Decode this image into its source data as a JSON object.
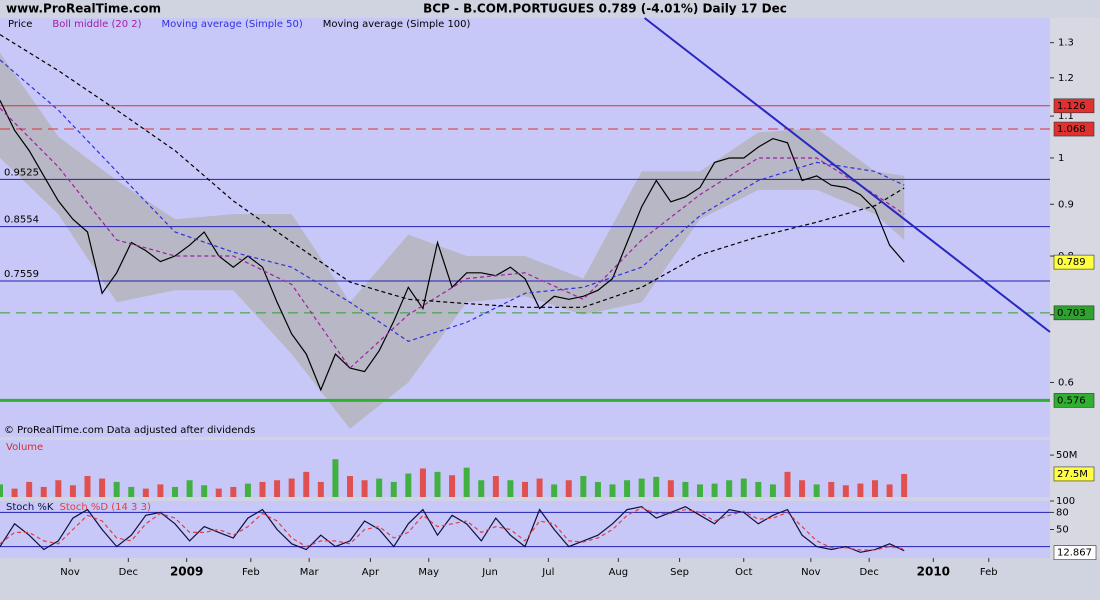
{
  "brand": "www.ProRealTime.com",
  "chart_data": [
    {
      "type": "line",
      "title": "BCP - B.COM.PORTUGUES    0.789 (-4.01%)    Daily  17 Dec",
      "note": "© ProRealTime.com  Data adjusted after dividends",
      "log": true,
      "ylim": [
        0.53,
        1.375
      ],
      "yticks": [
        1.3,
        1.2,
        1.1,
        1,
        0.9,
        0.8,
        0.7,
        0.6
      ],
      "series": [
        {
          "name": "Price",
          "color": "#000000",
          "x": [
            0,
            5,
            10,
            15,
            20,
            25,
            30,
            35,
            40,
            45,
            50,
            55,
            60,
            65,
            70,
            75,
            80,
            85,
            90,
            95,
            100,
            105,
            110,
            115,
            120,
            125,
            130,
            135,
            140,
            145,
            150,
            155,
            160,
            165,
            170,
            175,
            180,
            185,
            190,
            195,
            200,
            205,
            210,
            215,
            220,
            225,
            230,
            235,
            240,
            245,
            250,
            255,
            260,
            265,
            270,
            275,
            280,
            285,
            290,
            295,
            300,
            305,
            310
          ],
          "values": [
            1.14,
            1.065,
            1.017,
            0.96,
            0.907,
            0.87,
            0.845,
            0.735,
            0.77,
            0.825,
            0.81,
            0.79,
            0.8,
            0.82,
            0.845,
            0.8,
            0.78,
            0.8,
            0.78,
            0.72,
            0.67,
            0.64,
            0.59,
            0.64,
            0.62,
            0.615,
            0.645,
            0.69,
            0.745,
            0.71,
            0.825,
            0.745,
            0.77,
            0.77,
            0.765,
            0.78,
            0.76,
            0.71,
            0.73,
            0.725,
            0.73,
            0.74,
            0.76,
            0.825,
            0.895,
            0.95,
            0.905,
            0.915,
            0.935,
            0.99,
            1.0,
            1.0,
            1.025,
            1.045,
            1.035,
            0.95,
            0.96,
            0.94,
            0.935,
            0.92,
            0.89,
            0.82,
            0.789
          ],
          "last_color": "#ffff40"
        },
        {
          "name": "Boll middle (20 2)",
          "color": "#a020a0",
          "style": "dashed",
          "band_color": "#b4b4bc",
          "x": [
            0,
            20,
            40,
            60,
            80,
            100,
            120,
            140,
            160,
            180,
            200,
            220,
            240,
            260,
            280,
            300,
            310
          ],
          "values": [
            1.12,
            0.98,
            0.83,
            0.8,
            0.8,
            0.75,
            0.62,
            0.7,
            0.76,
            0.77,
            0.725,
            0.83,
            0.92,
            1.0,
            1.0,
            0.92,
            0.88
          ],
          "upper": [
            1.27,
            1.05,
            0.95,
            0.87,
            0.88,
            0.88,
            0.72,
            0.84,
            0.8,
            0.8,
            0.76,
            0.97,
            0.97,
            1.06,
            1.07,
            0.97,
            0.96
          ],
          "lower": [
            1.0,
            0.88,
            0.72,
            0.74,
            0.74,
            0.64,
            0.54,
            0.6,
            0.72,
            0.73,
            0.7,
            0.72,
            0.87,
            0.93,
            0.93,
            0.88,
            0.83
          ]
        },
        {
          "name": "Moving average (Simple 50)",
          "color": "#3030e0",
          "style": "dashed",
          "x": [
            0,
            20,
            40,
            60,
            80,
            100,
            120,
            140,
            160,
            180,
            200,
            220,
            240,
            260,
            280,
            300,
            310
          ],
          "values": [
            1.25,
            1.115,
            0.97,
            0.845,
            0.807,
            0.78,
            0.72,
            0.659,
            0.688,
            0.735,
            0.745,
            0.78,
            0.877,
            0.95,
            0.99,
            0.97,
            0.94
          ]
        },
        {
          "name": "Moving average (Simple 100)",
          "color": "#000000",
          "style": "dashed",
          "x": [
            0,
            20,
            40,
            60,
            80,
            100,
            120,
            140,
            160,
            180,
            200,
            220,
            240,
            260,
            280,
            300,
            310
          ],
          "values": [
            1.324,
            1.22,
            1.115,
            1.017,
            0.907,
            0.826,
            0.754,
            0.725,
            0.718,
            0.712,
            0.712,
            0.745,
            0.802,
            0.836,
            0.864,
            0.897,
            0.934
          ]
        }
      ],
      "levels": [
        {
          "value": 1.126,
          "color": "#e03030",
          "style": "solid",
          "side": "right"
        },
        {
          "value": 1.068,
          "color": "#e03030",
          "style": "dashed",
          "side": "right"
        },
        {
          "value": 0.9525,
          "color": "#2020b0",
          "style": "solid",
          "side": "left"
        },
        {
          "value": 0.8554,
          "color": "#2020b0",
          "style": "solid",
          "side": "left"
        },
        {
          "value": 0.7559,
          "color": "#2020b0",
          "style": "solid",
          "side": "left"
        },
        {
          "value": 0.703,
          "color": "#30a030",
          "style": "dashed",
          "side": "right"
        },
        {
          "value": 0.576,
          "color": "#30b030",
          "style": "thick",
          "side": "right"
        }
      ],
      "trendline": {
        "x": [
          221,
          360
        ],
        "y": [
          1.375,
          0.673
        ],
        "color": "#2828c0"
      }
    },
    {
      "type": "bar",
      "title": "Volume",
      "title_color": "#d03030",
      "ylim": [
        0,
        68
      ],
      "yticks": [
        {
          "value": 50,
          "label": "50M"
        }
      ],
      "up_color": "#40b040",
      "down_color": "#e05050",
      "last_value_label": "27.5M",
      "last_color": "#ffff40",
      "x": [
        0,
        5,
        10,
        15,
        20,
        25,
        30,
        35,
        40,
        45,
        50,
        55,
        60,
        65,
        70,
        75,
        80,
        85,
        90,
        95,
        100,
        105,
        110,
        115,
        120,
        125,
        130,
        135,
        140,
        145,
        150,
        155,
        160,
        165,
        170,
        175,
        180,
        185,
        190,
        195,
        200,
        205,
        210,
        215,
        220,
        225,
        230,
        235,
        240,
        245,
        250,
        255,
        260,
        265,
        270,
        275,
        280,
        285,
        290,
        295,
        300,
        305,
        310
      ],
      "values": [
        15,
        10,
        18,
        12,
        20,
        14,
        25,
        22,
        18,
        12,
        10,
        15,
        12,
        20,
        14,
        10,
        12,
        16,
        18,
        20,
        22,
        30,
        18,
        45,
        25,
        20,
        22,
        18,
        28,
        34,
        30,
        26,
        35,
        20,
        25,
        20,
        18,
        22,
        15,
        20,
        25,
        18,
        15,
        20,
        22,
        24,
        20,
        18,
        15,
        16,
        20,
        22,
        18,
        15,
        30,
        20,
        15,
        18,
        14,
        16,
        20,
        15,
        27.5
      ]
    },
    {
      "type": "line",
      "xlim": [
        0,
        360
      ],
      "xticks": [
        {
          "value": 24,
          "label": "Nov"
        },
        {
          "value": 44,
          "label": "Dec"
        },
        {
          "value": 64,
          "label": "2009"
        },
        {
          "value": 86,
          "label": "Feb"
        },
        {
          "value": 106,
          "label": "Mar"
        },
        {
          "value": 127,
          "label": "Apr"
        },
        {
          "value": 147,
          "label": "May"
        },
        {
          "value": 168,
          "label": "Jun"
        },
        {
          "value": 188,
          "label": "Jul"
        },
        {
          "value": 212,
          "label": "Aug"
        },
        {
          "value": 233,
          "label": "Sep"
        },
        {
          "value": 255,
          "label": "Oct"
        },
        {
          "value": 278,
          "label": "Nov"
        },
        {
          "value": 298,
          "label": "Dec"
        },
        {
          "value": 320,
          "label": "2010"
        },
        {
          "value": 339,
          "label": "Feb"
        }
      ],
      "ylim": [
        0,
        100
      ],
      "yticks": [
        100,
        80,
        50
      ],
      "levels": [
        80,
        20
      ],
      "level_color": "#2020b0",
      "last_color": "#ffffff",
      "series": [
        {
          "name": "Stoch %K",
          "color": "#101040",
          "style": "solid",
          "x": [
            0,
            5,
            10,
            15,
            20,
            25,
            30,
            35,
            40,
            45,
            50,
            55,
            60,
            65,
            70,
            75,
            80,
            85,
            90,
            95,
            100,
            105,
            110,
            115,
            120,
            125,
            130,
            135,
            140,
            145,
            150,
            155,
            160,
            165,
            170,
            175,
            180,
            185,
            190,
            195,
            200,
            205,
            210,
            215,
            220,
            225,
            230,
            235,
            240,
            245,
            250,
            255,
            260,
            265,
            270,
            275,
            280,
            285,
            290,
            295,
            300,
            305,
            310
          ],
          "values": [
            20,
            60,
            40,
            15,
            30,
            70,
            85,
            50,
            20,
            40,
            75,
            80,
            60,
            30,
            55,
            45,
            35,
            70,
            85,
            50,
            25,
            15,
            40,
            20,
            30,
            65,
            50,
            20,
            60,
            85,
            40,
            75,
            60,
            30,
            70,
            40,
            20,
            85,
            50,
            20,
            30,
            40,
            60,
            85,
            90,
            70,
            80,
            90,
            75,
            60,
            85,
            80,
            60,
            75,
            85,
            40,
            20,
            15,
            20,
            10,
            15,
            25,
            12.867
          ]
        },
        {
          "name": "Stoch %D (14 3 3)",
          "color": "#e04040",
          "style": "dashed",
          "x": [
            0,
            5,
            10,
            15,
            20,
            25,
            30,
            35,
            40,
            45,
            50,
            55,
            60,
            65,
            70,
            75,
            80,
            85,
            90,
            95,
            100,
            105,
            110,
            115,
            120,
            125,
            130,
            135,
            140,
            145,
            150,
            155,
            160,
            165,
            170,
            175,
            180,
            185,
            190,
            195,
            200,
            205,
            210,
            215,
            220,
            225,
            230,
            235,
            240,
            245,
            250,
            255,
            260,
            265,
            270,
            275,
            280,
            285,
            290,
            295,
            300,
            305,
            310
          ],
          "values": [
            25,
            45,
            45,
            30,
            25,
            50,
            75,
            65,
            35,
            30,
            60,
            78,
            70,
            45,
            45,
            50,
            40,
            55,
            78,
            65,
            35,
            20,
            30,
            30,
            25,
            50,
            55,
            35,
            45,
            75,
            55,
            60,
            65,
            45,
            55,
            50,
            30,
            65,
            60,
            30,
            28,
            35,
            50,
            75,
            88,
            78,
            78,
            85,
            80,
            65,
            75,
            82,
            68,
            70,
            80,
            55,
            30,
            18,
            18,
            14,
            14,
            20,
            16
          ]
        }
      ]
    }
  ]
}
